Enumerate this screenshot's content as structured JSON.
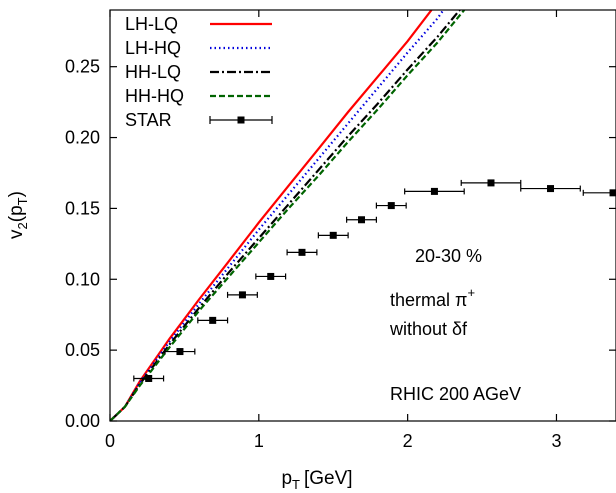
{
  "chart_data": {
    "type": "line",
    "xlabel": "p",
    "xlabel_sub": "T",
    "xlabel_unit": "[GeV]",
    "ylabel_main": "v",
    "ylabel_sub1": "2",
    "ylabel_mid": "(p",
    "ylabel_sub2": "T",
    "ylabel_end": ")",
    "xlim": [
      0,
      3.4
    ],
    "ylim": [
      0,
      0.29
    ],
    "x_ticks": [
      0,
      1,
      2,
      3
    ],
    "x_tick_labels": [
      "0",
      "1",
      "2",
      "3"
    ],
    "y_ticks": [
      0,
      0.05,
      0.1,
      0.15,
      0.2,
      0.25
    ],
    "y_tick_labels": [
      "0.00",
      "0.05",
      "0.10",
      "0.15",
      "0.20",
      "0.25"
    ],
    "legend_position": "top-left",
    "series": [
      {
        "name": "LH-LQ",
        "color": "#ff0000",
        "style": "solid",
        "points": [
          [
            0,
            0
          ],
          [
            0.1,
            0.01
          ],
          [
            0.2,
            0.028
          ],
          [
            0.4,
            0.058
          ],
          [
            0.6,
            0.086
          ],
          [
            0.8,
            0.113
          ],
          [
            1.0,
            0.14
          ],
          [
            1.2,
            0.166
          ],
          [
            1.4,
            0.192
          ],
          [
            1.6,
            0.218
          ],
          [
            1.8,
            0.243
          ],
          [
            2.0,
            0.268
          ],
          [
            2.16,
            0.29
          ]
        ]
      },
      {
        "name": "LH-HQ",
        "color": "#0000dd",
        "style": "dotted",
        "points": [
          [
            0,
            0
          ],
          [
            0.1,
            0.01
          ],
          [
            0.2,
            0.027
          ],
          [
            0.4,
            0.056
          ],
          [
            0.6,
            0.083
          ],
          [
            0.8,
            0.109
          ],
          [
            1.0,
            0.135
          ],
          [
            1.2,
            0.16
          ],
          [
            1.4,
            0.185
          ],
          [
            1.6,
            0.21
          ],
          [
            1.8,
            0.235
          ],
          [
            2.0,
            0.26
          ],
          [
            2.2,
            0.284
          ],
          [
            2.24,
            0.29
          ]
        ]
      },
      {
        "name": "HH-LQ",
        "color": "#000000",
        "style": "dashdot",
        "points": [
          [
            0,
            0
          ],
          [
            0.1,
            0.01
          ],
          [
            0.2,
            0.026
          ],
          [
            0.4,
            0.054
          ],
          [
            0.6,
            0.08
          ],
          [
            0.8,
            0.105
          ],
          [
            1.0,
            0.129
          ],
          [
            1.2,
            0.153
          ],
          [
            1.4,
            0.177
          ],
          [
            1.6,
            0.201
          ],
          [
            1.8,
            0.224
          ],
          [
            2.0,
            0.248
          ],
          [
            2.2,
            0.271
          ],
          [
            2.35,
            0.29
          ]
        ]
      },
      {
        "name": "HH-HQ",
        "color": "#006400",
        "style": "dashed",
        "points": [
          [
            0,
            0
          ],
          [
            0.1,
            0.01
          ],
          [
            0.2,
            0.025
          ],
          [
            0.4,
            0.052
          ],
          [
            0.6,
            0.078
          ],
          [
            0.8,
            0.102
          ],
          [
            1.0,
            0.126
          ],
          [
            1.2,
            0.15
          ],
          [
            1.4,
            0.173
          ],
          [
            1.6,
            0.197
          ],
          [
            1.8,
            0.22
          ],
          [
            2.0,
            0.244
          ],
          [
            2.2,
            0.267
          ],
          [
            2.38,
            0.29
          ]
        ]
      },
      {
        "name": "STAR",
        "color": "#000000",
        "style": "errorbars",
        "points": [
          {
            "x": 0.26,
            "y": 0.03,
            "xerr": 0.1
          },
          {
            "x": 0.47,
            "y": 0.049,
            "xerr": 0.1
          },
          {
            "x": 0.69,
            "y": 0.071,
            "xerr": 0.1
          },
          {
            "x": 0.89,
            "y": 0.089,
            "xerr": 0.1
          },
          {
            "x": 1.08,
            "y": 0.102,
            "xerr": 0.1
          },
          {
            "x": 1.29,
            "y": 0.119,
            "xerr": 0.1
          },
          {
            "x": 1.5,
            "y": 0.131,
            "xerr": 0.1
          },
          {
            "x": 1.69,
            "y": 0.142,
            "xerr": 0.1
          },
          {
            "x": 1.89,
            "y": 0.152,
            "xerr": 0.1
          },
          {
            "x": 2.18,
            "y": 0.162,
            "xerr": 0.2
          },
          {
            "x": 2.56,
            "y": 0.168,
            "xerr": 0.2
          },
          {
            "x": 2.96,
            "y": 0.164,
            "xerr": 0.2
          },
          {
            "x": 3.38,
            "y": 0.161,
            "xerr": 0.2
          }
        ]
      }
    ],
    "annotations": {
      "centrality": "20-30 %",
      "thermal_prefix": "thermal π",
      "thermal_sup": "+",
      "without": "without δf",
      "energy": "RHIC 200 AGeV"
    }
  }
}
